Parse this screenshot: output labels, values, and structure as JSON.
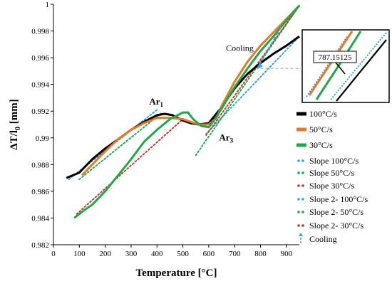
{
  "chart_data": {
    "type": "line",
    "title": "",
    "xlabel": "Temperature [°C]",
    "ylabel": "ΔT/l",
    "ylabel_sub": "0",
    "ylabel_unit": " [mm]",
    "xlim": [
      0,
      950
    ],
    "ylim": [
      0.982,
      1.0
    ],
    "xticks": [
      0,
      100,
      200,
      300,
      400,
      500,
      600,
      700,
      800,
      900
    ],
    "yticks": [
      0.982,
      0.984,
      0.986,
      0.988,
      0.99,
      0.992,
      0.994,
      0.996,
      0.998,
      1
    ],
    "ytick_labels": [
      "0.982",
      "0.984",
      "0.986",
      "0.988",
      "0.99",
      "0.992",
      "0.994",
      "0.996",
      "0.998",
      "1"
    ],
    "grid": false,
    "legend_position": "right",
    "series": [
      {
        "name": "100°C/s",
        "color": "#000000",
        "style": "solid",
        "x": [
          50,
          100,
          150,
          200,
          250,
          300,
          350,
          400,
          430,
          460,
          500,
          530,
          560,
          600,
          650,
          700,
          750,
          800,
          850,
          900,
          950
        ],
        "y": [
          0.987,
          0.9874,
          0.9884,
          0.9892,
          0.9899,
          0.9906,
          0.9912,
          0.9917,
          0.9918,
          0.9917,
          0.9913,
          0.9911,
          0.991,
          0.9911,
          0.9923,
          0.9937,
          0.9948,
          0.9956,
          0.9963,
          0.9969,
          0.9976
        ]
      },
      {
        "name": "50°C/s",
        "color": "#e07a2e",
        "style": "solid",
        "x": [
          110,
          150,
          200,
          250,
          300,
          350,
          400,
          450,
          500,
          530,
          560,
          600,
          630,
          650,
          700,
          750,
          800,
          850,
          900,
          950
        ],
        "y": [
          0.9872,
          0.988,
          0.989,
          0.9899,
          0.9906,
          0.9911,
          0.9915,
          0.9915,
          0.9914,
          0.9912,
          0.991,
          0.991,
          0.9915,
          0.9924,
          0.9942,
          0.9957,
          0.9969,
          0.9979,
          0.9989,
          0.9999
        ]
      },
      {
        "name": "30°C/s",
        "color": "#22a64a",
        "style": "solid",
        "x": [
          80,
          120,
          150,
          200,
          250,
          300,
          350,
          400,
          450,
          500,
          520,
          540,
          570,
          600,
          620,
          650,
          700,
          750,
          800,
          850,
          900,
          950
        ],
        "y": [
          0.984,
          0.9846,
          0.985,
          0.986,
          0.9872,
          0.9884,
          0.9897,
          0.9906,
          0.9914,
          0.9919,
          0.9919,
          0.9914,
          0.9909,
          0.9908,
          0.9913,
          0.9922,
          0.9938,
          0.9952,
          0.9965,
          0.9976,
          0.9988,
          0.9999
        ]
      }
    ],
    "slopes": [
      {
        "name": "Slope  100°C/s",
        "color": "#3aa0d8",
        "x": [
          60,
          400
        ],
        "y": [
          0.9869,
          0.9921
        ]
      },
      {
        "name": "Slope  50°C/s",
        "color": "#22a64a",
        "x": [
          100,
          420
        ],
        "y": [
          0.9869,
          0.9919
        ]
      },
      {
        "name": "Slope  30°C/s",
        "color": "#c0392b",
        "x": [
          90,
          500
        ],
        "y": [
          0.9843,
          0.9914
        ]
      },
      {
        "name": "Slope 2- 100°C/s",
        "color": "#3aa0d8",
        "x": [
          590,
          950
        ],
        "y": [
          0.9903,
          0.9976
        ]
      },
      {
        "name": "Slope 2- 50°C/s",
        "color": "#22a64a",
        "x": [
          550,
          950
        ],
        "y": [
          0.9887,
          0.9999
        ]
      },
      {
        "name": "Slope 2- 30°C/s",
        "color": "#c0392b",
        "x": [
          590,
          950
        ],
        "y": [
          0.9902,
          0.9999
        ]
      }
    ],
    "cooling": {
      "name": "Cooling",
      "color": "#3aa0d8",
      "x": [
        880,
        790
      ],
      "y": [
        0.9983,
        0.9953
      ]
    },
    "annotations": [
      {
        "text": "Ar",
        "sub": "1",
        "x": 370,
        "y": 0.9925
      },
      {
        "text": "Ar",
        "sub": "3",
        "x": 640,
        "y": 0.9898
      },
      {
        "text": "Cooling",
        "x": 720,
        "y": 0.9965
      }
    ],
    "inset_label": "787.15125",
    "dashed_reference_y": 0.9952
  }
}
